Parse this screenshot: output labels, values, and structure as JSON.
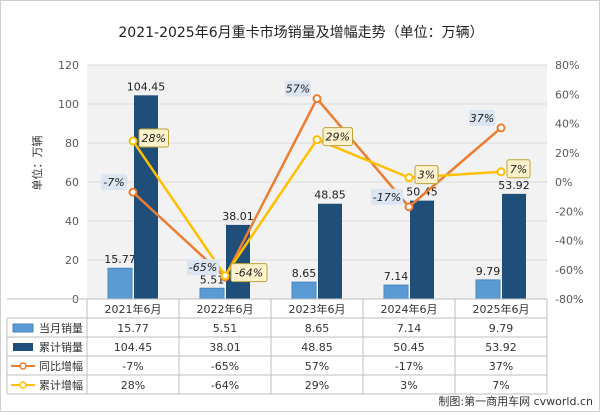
{
  "chart_data": {
    "type": "bar+line",
    "title": "2021-2025年6月重卡市场销量及增幅走势（单位：万辆）",
    "ylabel": "单位：万辆",
    "ylim": [
      0,
      120
    ],
    "y_ticks": [
      0,
      20,
      40,
      60,
      80,
      100,
      120
    ],
    "y2lim": [
      -80,
      80
    ],
    "y2_ticks": [
      "-80%",
      "-60%",
      "-40%",
      "-20%",
      "0%",
      "20%",
      "40%",
      "60%",
      "80%"
    ],
    "categories": [
      "2021年6月",
      "2022年6月",
      "2023年6月",
      "2024年6月",
      "2025年6月"
    ],
    "series": [
      {
        "name": "当月销量",
        "kind": "bar",
        "axis": "left",
        "color": "#5B9BD5",
        "values": [
          15.77,
          5.51,
          8.65,
          7.14,
          9.79
        ],
        "labels": [
          "15.77",
          "5.51",
          "8.65",
          "7.14",
          "9.79"
        ]
      },
      {
        "name": "累计销量",
        "kind": "bar",
        "axis": "left",
        "color": "#1F4E79",
        "values": [
          104.45,
          38.01,
          48.85,
          50.45,
          53.92
        ],
        "labels": [
          "104.45",
          "38.01",
          "48.85",
          "50.45",
          "53.92"
        ]
      },
      {
        "name": "同比增幅",
        "kind": "line",
        "axis": "right",
        "color": "#ED7D31",
        "values": [
          -7,
          -65,
          57,
          -17,
          37
        ],
        "labels": [
          "-7%",
          "-65%",
          "57%",
          "-17%",
          "37%"
        ]
      },
      {
        "name": "累计增幅",
        "kind": "line",
        "axis": "right",
        "color": "#FFC000",
        "values": [
          28,
          -64,
          29,
          3,
          7
        ],
        "labels": [
          "28%",
          "-64%",
          "29%",
          "3%",
          "7%"
        ]
      }
    ],
    "source": "制图:第一商用车网 cvworld.cn"
  }
}
